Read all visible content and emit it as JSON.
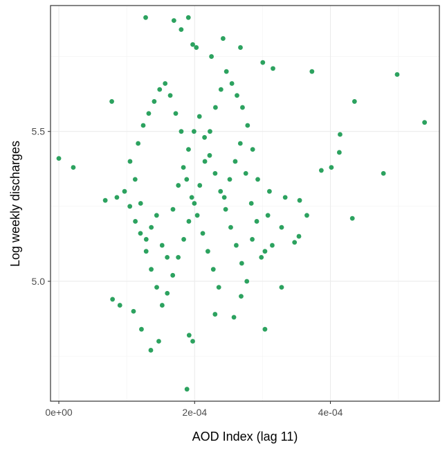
{
  "chart_data": {
    "type": "scatter",
    "title": "",
    "xlabel": "AOD Index (lag 11)",
    "ylabel": "Log weekly discharges",
    "xlim": [
      -1.225e-05,
      0.0005605
    ],
    "ylim": [
      4.6,
      5.92
    ],
    "x_ticks": [
      {
        "value": 0,
        "label": "0e+00"
      },
      {
        "value": 0.0002,
        "label": "2e-04"
      },
      {
        "value": 0.0004,
        "label": "4e-04"
      }
    ],
    "y_ticks": [
      {
        "value": 5.0,
        "label": "5.0"
      },
      {
        "value": 5.5,
        "label": "5.5"
      }
    ],
    "grid": true,
    "point_color": "#2ca25f",
    "points": [
      [
        0.0,
        5.41
      ],
      [
        2.13e-05,
        5.38
      ],
      [
        7.8e-05,
        5.6
      ],
      [
        0.0001279,
        5.88
      ],
      [
        0.0001695,
        5.87
      ],
      [
        0.0001908,
        5.88
      ],
      [
        0.0001802,
        5.84
      ],
      [
        0.0001972,
        5.79
      ],
      [
        0.0002025,
        5.78
      ],
      [
        0.0002419,
        5.81
      ],
      [
        0.0002675,
        5.78
      ],
      [
        0.0002248,
        5.75
      ],
      [
        0.0003004,
        5.73
      ],
      [
        0.0003154,
        5.71
      ],
      [
        0.0003728,
        5.7
      ],
      [
        0.0004983,
        5.69
      ],
      [
        0.0004355,
        5.6
      ],
      [
        0.0005387,
        5.53
      ],
      [
        0.0004142,
        5.49
      ],
      [
        0.0004131,
        5.43
      ],
      [
        0.0004014,
        5.38
      ],
      [
        0.0003866,
        5.37
      ],
      [
        0.0004781,
        5.36
      ],
      [
        0.0004323,
        5.21
      ],
      [
        0.0003653,
        5.22
      ],
      [
        0.0003547,
        5.27
      ],
      [
        0.0003334,
        5.28
      ],
      [
        0.0003079,
        5.22
      ],
      [
        0.0003281,
        5.18
      ],
      [
        0.0003536,
        5.15
      ],
      [
        0.0003472,
        5.13
      ],
      [
        0.0003143,
        5.12
      ],
      [
        0.0003036,
        5.1
      ],
      [
        0.0002983,
        5.08
      ],
      [
        0.0003281,
        4.98
      ],
      [
        0.0003036,
        4.84
      ],
      [
        0.0002685,
        4.95
      ],
      [
        0.0002579,
        4.88
      ],
      [
        0.0002301,
        4.89
      ],
      [
        0.0001972,
        4.8
      ],
      [
        0.0001919,
        4.82
      ],
      [
        0.0001355,
        4.77
      ],
      [
        0.0001472,
        4.8
      ],
      [
        0.0001217,
        4.84
      ],
      [
        0.0001887,
        4.64
      ],
      [
        7.91e-05,
        4.94
      ],
      [
        8.99e-05,
        4.92
      ],
      [
        0.00011,
        4.9
      ],
      [
        6.84e-05,
        5.27
      ],
      [
        8.55e-05,
        5.28
      ],
      [
        9.68e-05,
        5.3
      ],
      [
        0.0001046,
        5.25
      ],
      [
        0.0001127,
        5.2
      ],
      [
        0.0001202,
        5.16
      ],
      [
        0.0001287,
        5.14
      ],
      [
        0.0001362,
        5.18
      ],
      [
        0.000144,
        5.22
      ],
      [
        0.0001521,
        5.12
      ],
      [
        0.0001596,
        5.08
      ],
      [
        0.0001681,
        5.24
      ],
      [
        0.000176,
        5.32
      ],
      [
        0.0001835,
        5.38
      ],
      [
        0.000191,
        5.44
      ],
      [
        0.0001991,
        5.5
      ],
      [
        0.0002071,
        5.55
      ],
      [
        0.0002146,
        5.48
      ],
      [
        0.0002221,
        5.42
      ],
      [
        0.0002302,
        5.36
      ],
      [
        0.0002382,
        5.3
      ],
      [
        0.0002457,
        5.24
      ],
      [
        0.0002532,
        5.18
      ],
      [
        0.0002613,
        5.12
      ],
      [
        0.0002694,
        5.06
      ],
      [
        0.0002769,
        5.0
      ],
      [
        0.0002849,
        5.14
      ],
      [
        0.000293,
        5.34
      ],
      [
        0.0002855,
        5.44
      ],
      [
        0.000278,
        5.52
      ],
      [
        0.0002705,
        5.58
      ],
      [
        0.0002624,
        5.62
      ],
      [
        0.0002549,
        5.66
      ],
      [
        0.0002468,
        5.7
      ],
      [
        0.0002388,
        5.64
      ],
      [
        0.0002307,
        5.58
      ],
      [
        0.0002226,
        5.5
      ],
      [
        0.0002151,
        5.4
      ],
      [
        0.0002076,
        5.32
      ],
      [
        0.0001996,
        5.26
      ],
      [
        0.0001915,
        5.2
      ],
      [
        0.000184,
        5.14
      ],
      [
        0.0001759,
        5.08
      ],
      [
        0.0001678,
        5.02
      ],
      [
        0.0001597,
        4.96
      ],
      [
        0.0001522,
        4.92
      ],
      [
        0.0001442,
        4.98
      ],
      [
        0.0001361,
        5.04
      ],
      [
        0.0001286,
        5.1
      ],
      [
        0.0001205,
        5.26
      ],
      [
        0.0001124,
        5.34
      ],
      [
        0.0001049,
        5.4
      ],
      [
        0.0001168,
        5.46
      ],
      [
        0.0001243,
        5.52
      ],
      [
        0.0001324,
        5.56
      ],
      [
        0.0001405,
        5.6
      ],
      [
        0.0001485,
        5.64
      ],
      [
        0.0001566,
        5.66
      ],
      [
        0.0001641,
        5.62
      ],
      [
        0.0001722,
        5.56
      ],
      [
        0.0001803,
        5.5
      ],
      [
        0.0001883,
        5.34
      ],
      [
        0.0001958,
        5.28
      ],
      [
        0.0002039,
        5.22
      ],
      [
        0.000212,
        5.16
      ],
      [
        0.0002195,
        5.1
      ],
      [
        0.0002275,
        5.04
      ],
      [
        0.0002356,
        4.98
      ],
      [
        0.0002437,
        5.28
      ],
      [
        0.0002517,
        5.34
      ],
      [
        0.0002598,
        5.4
      ],
      [
        0.0002673,
        5.46
      ],
      [
        0.0002754,
        5.36
      ],
      [
        0.0002835,
        5.26
      ],
      [
        0.0002915,
        5.2
      ],
      [
        0.0003102,
        5.3
      ]
    ]
  }
}
